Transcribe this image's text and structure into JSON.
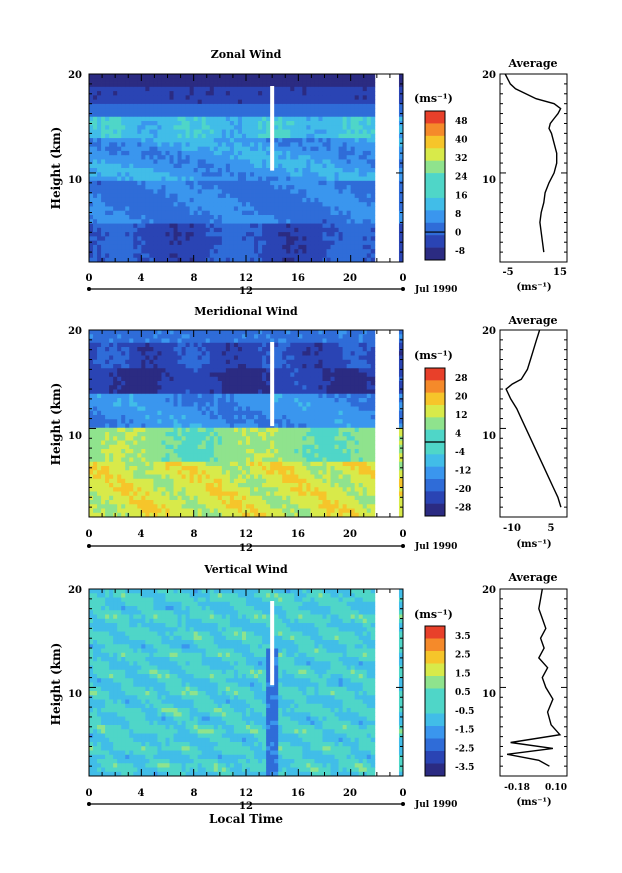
{
  "chart_data": [
    {
      "type": "heatmap",
      "title": "Zonal Wind",
      "xlabel": "",
      "ylabel": "Height (km)",
      "x_ticks": [
        "0",
        "4",
        "8",
        "12",
        "16",
        "20",
        "0"
      ],
      "y_ticks": [
        "10",
        "20"
      ],
      "xlim": [
        0,
        24
      ],
      "ylim": [
        1,
        20
      ],
      "date_label": "Jul 1990",
      "date_axis_label": "12",
      "colorbar": {
        "unit_label": "(ms⁻¹)",
        "ticks": [
          "48",
          "40",
          "32",
          "24",
          "16",
          "8",
          "0",
          "-8"
        ],
        "contour_level": "0"
      },
      "average": {
        "title": "Average",
        "x_ticks": [
          "-5",
          "15"
        ],
        "x_unit": "(ms⁻¹)",
        "y_ticks": [
          "10",
          "20"
        ],
        "xlim": [
          -8,
          18
        ],
        "x": [
          9,
          8.5,
          8,
          7.5,
          8,
          9,
          9.5,
          11,
          13,
          14,
          14,
          13,
          12,
          11,
          11.5,
          13,
          14.5,
          15.5,
          13,
          6,
          2,
          -2,
          -4,
          -5,
          -6
        ],
        "y": [
          2,
          3,
          4,
          5,
          6,
          7,
          8,
          9,
          10,
          11,
          12,
          13,
          14,
          14.5,
          15,
          15.5,
          16,
          16.5,
          17,
          17.5,
          18,
          18.5,
          19,
          19.5,
          20
        ]
      }
    },
    {
      "type": "heatmap",
      "title": "Meridional Wind",
      "xlabel": "",
      "ylabel": "Height (km)",
      "x_ticks": [
        "0",
        "4",
        "8",
        "12",
        "16",
        "20",
        "0"
      ],
      "y_ticks": [
        "10",
        "20"
      ],
      "xlim": [
        0,
        24
      ],
      "ylim": [
        1,
        20
      ],
      "date_label": "Jul 1990",
      "date_axis_label": "12",
      "colorbar": {
        "unit_label": "(ms⁻¹)",
        "ticks": [
          "28",
          "20",
          "12",
          "4",
          "-4",
          "-12",
          "-20",
          "-28"
        ],
        "contour_level": "0"
      },
      "average": {
        "title": "Average",
        "x_ticks": [
          "-10",
          "5"
        ],
        "x_unit": "(ms⁻¹)",
        "y_ticks": [
          "10",
          "20"
        ],
        "xlim": [
          -14,
          8
        ],
        "x": [
          6,
          5,
          3.5,
          2,
          0.5,
          -1,
          -2.5,
          -4,
          -5.5,
          -7,
          -8.5,
          -10.5,
          -12,
          -10,
          -7,
          -5,
          -4,
          -3,
          -2,
          -1.5,
          -1
        ],
        "y": [
          2,
          3,
          4,
          5,
          6,
          7,
          8,
          9,
          10,
          11,
          12,
          13,
          14,
          14.5,
          15,
          16,
          17,
          18,
          19,
          19.5,
          20
        ]
      }
    },
    {
      "type": "heatmap",
      "title": "Vertical Wind",
      "xlabel": "Local Time",
      "ylabel": "Height (km)",
      "x_ticks": [
        "0",
        "4",
        "8",
        "12",
        "16",
        "20",
        "0"
      ],
      "y_ticks": [
        "10",
        "20"
      ],
      "xlim": [
        0,
        24
      ],
      "ylim": [
        1,
        20
      ],
      "date_label": "Jul 1990",
      "date_axis_label": "12",
      "colorbar": {
        "unit_label": "(ms⁻¹)",
        "ticks": [
          "3.5",
          "2.5",
          "1.5",
          "0.5",
          "-0.5",
          "-1.5",
          "-2.5",
          "-3.5"
        ]
      },
      "average": {
        "title": "Average",
        "x_ticks": [
          "-0.18",
          "0.10"
        ],
        "x_unit": "(ms⁻¹)",
        "y_ticks": [
          "10",
          "20"
        ],
        "xlim": [
          -0.24,
          0.14
        ],
        "x": [
          0.04,
          -0.02,
          -0.2,
          0.06,
          -0.18,
          0.1,
          0.05,
          0.03,
          0.06,
          0.02,
          0.0,
          0.03,
          -0.02,
          0.01,
          -0.01,
          0.02,
          0.0,
          -0.02,
          -0.01,
          0.0
        ],
        "y": [
          2,
          2.6,
          3.2,
          3.8,
          4.4,
          5.2,
          6.2,
          7.5,
          8.8,
          10,
          11,
          12,
          13,
          14,
          15,
          16,
          17,
          18,
          19,
          20
        ]
      }
    }
  ]
}
